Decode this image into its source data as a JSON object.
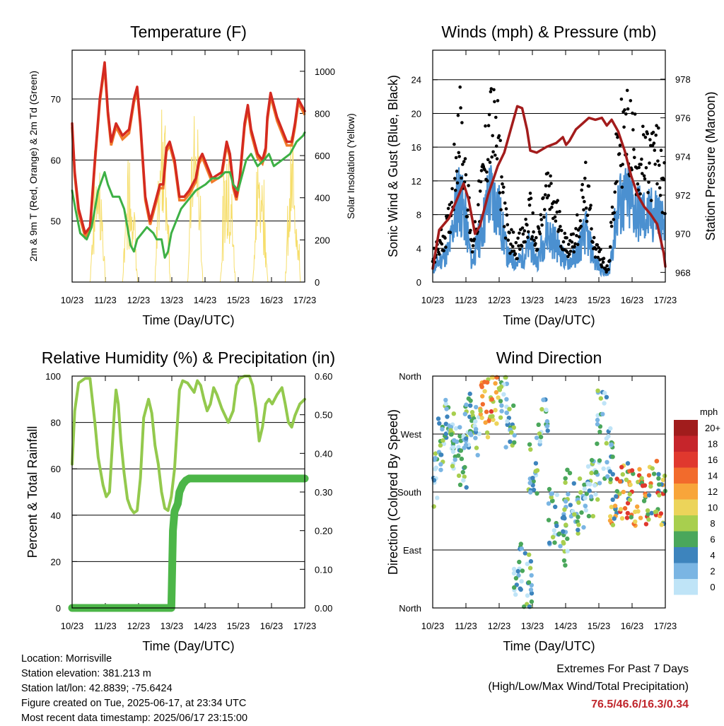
{
  "x_ticks": [
    "10/23",
    "11/23",
    "12/23",
    "13/23",
    "14/23",
    "15/23",
    "16/23",
    "17/23"
  ],
  "x_axis_label": "Time (Day/UTC)",
  "chart_data": [
    {
      "type": "line",
      "title": "Temperature (F)",
      "ylabel": "2m & 9m T (Red, Orange) & 2m Td (Green)",
      "y2label": "Solar Insolation (Yellow)",
      "xlabel": "Time (Day/UTC)",
      "x_ticks": [
        "10/23",
        "11/23",
        "12/23",
        "13/23",
        "14/23",
        "15/23",
        "16/23",
        "17/23"
      ],
      "ylim": [
        40,
        78
      ],
      "yticks": [
        50,
        60,
        70
      ],
      "y2lim": [
        0,
        1100
      ],
      "y2ticks": [
        0,
        200,
        400,
        600,
        800,
        1000
      ],
      "grid": true,
      "series": [
        {
          "axis": "left",
          "color": "#d42a20",
          "width": 3.5,
          "points": [
            [
              0,
              66
            ],
            [
              0.08,
              58
            ],
            [
              0.2,
              52
            ],
            [
              0.4,
              48
            ],
            [
              0.55,
              49
            ],
            [
              0.7,
              60
            ],
            [
              0.85,
              70
            ],
            [
              1.0,
              76
            ],
            [
              1.1,
              68
            ],
            [
              1.2,
              63
            ],
            [
              1.35,
              66
            ],
            [
              1.55,
              64
            ],
            [
              1.75,
              65
            ],
            [
              1.9,
              70
            ],
            [
              2.0,
              72
            ],
            [
              2.1,
              66
            ],
            [
              2.25,
              54
            ],
            [
              2.4,
              50
            ],
            [
              2.55,
              53
            ],
            [
              2.7,
              56
            ],
            [
              2.8,
              56
            ],
            [
              2.9,
              62
            ],
            [
              3.0,
              63
            ],
            [
              3.15,
              60
            ],
            [
              3.3,
              54
            ],
            [
              3.45,
              54
            ],
            [
              3.6,
              55
            ],
            [
              3.8,
              57
            ],
            [
              3.9,
              60
            ],
            [
              4.0,
              61
            ],
            [
              4.15,
              59
            ],
            [
              4.3,
              57
            ],
            [
              4.6,
              58
            ],
            [
              4.75,
              63
            ],
            [
              4.85,
              61
            ],
            [
              4.95,
              56
            ],
            [
              5.05,
              54
            ],
            [
              5.15,
              57
            ],
            [
              5.3,
              66
            ],
            [
              5.4,
              69
            ],
            [
              5.5,
              65
            ],
            [
              5.7,
              61
            ],
            [
              5.85,
              60
            ],
            [
              5.95,
              62
            ],
            [
              6.0,
              67
            ],
            [
              6.1,
              71
            ],
            [
              6.3,
              67
            ],
            [
              6.6,
              63
            ],
            [
              6.75,
              63
            ],
            [
              6.85,
              66
            ],
            [
              6.95,
              70
            ],
            [
              7.05,
              69
            ],
            [
              7.15,
              68
            ]
          ]
        },
        {
          "axis": "left",
          "color": "#3db045",
          "width": 3,
          "points": [
            [
              0,
              55
            ],
            [
              0.1,
              52
            ],
            [
              0.25,
              48
            ],
            [
              0.45,
              47
            ],
            [
              0.6,
              49
            ],
            [
              0.8,
              55
            ],
            [
              1.0,
              58
            ],
            [
              1.1,
              56
            ],
            [
              1.25,
              54
            ],
            [
              1.45,
              54
            ],
            [
              1.6,
              52
            ],
            [
              1.7,
              49
            ],
            [
              1.8,
              46
            ],
            [
              1.9,
              45
            ],
            [
              2.0,
              47
            ],
            [
              2.15,
              48
            ],
            [
              2.3,
              49
            ],
            [
              2.5,
              48
            ],
            [
              2.6,
              47
            ],
            [
              2.75,
              47
            ],
            [
              2.85,
              44
            ],
            [
              2.95,
              45
            ],
            [
              3.05,
              48
            ],
            [
              3.2,
              50
            ],
            [
              3.35,
              52
            ],
            [
              3.5,
              53
            ],
            [
              3.8,
              55
            ],
            [
              4.1,
              56
            ],
            [
              4.3,
              57
            ],
            [
              4.5,
              57
            ],
            [
              4.7,
              58
            ],
            [
              4.85,
              58
            ],
            [
              4.95,
              56
            ],
            [
              5.1,
              55
            ],
            [
              5.2,
              57
            ],
            [
              5.35,
              60
            ],
            [
              5.5,
              61
            ],
            [
              5.7,
              59
            ],
            [
              5.9,
              60
            ],
            [
              6.05,
              61
            ],
            [
              6.2,
              59
            ],
            [
              6.45,
              60
            ],
            [
              6.7,
              61
            ],
            [
              6.9,
              63
            ],
            [
              7.1,
              64
            ],
            [
              7.15,
              64.5
            ]
          ]
        }
      ]
    },
    {
      "type": "line",
      "title": "Winds (mph) & Pressure (mb)",
      "ylabel": "Sonic Wind & Gust (Blue, Black)",
      "y2label": "Station Pressure (Maroon)",
      "xlabel": "Time (Day/UTC)",
      "x_ticks": [
        "10/23",
        "11/23",
        "12/23",
        "13/23",
        "14/23",
        "15/23",
        "16/23",
        "17/23"
      ],
      "ylim": [
        0,
        27.5
      ],
      "yticks": [
        0,
        4,
        8,
        12,
        16,
        20,
        24
      ],
      "y2lim": [
        967.5,
        979.5
      ],
      "y2ticks": [
        968,
        970,
        972,
        974,
        976,
        978
      ],
      "grid": true,
      "series": [
        {
          "axis": "right",
          "color": "#a31c1c",
          "width": 3.5,
          "points": [
            [
              0,
              968.2
            ],
            [
              0.2,
              970.2
            ],
            [
              0.5,
              970.8
            ],
            [
              0.8,
              972.0
            ],
            [
              0.95,
              972.6
            ],
            [
              1.1,
              971.8
            ],
            [
              1.3,
              970.0
            ],
            [
              1.45,
              970.4
            ],
            [
              1.7,
              972.0
            ],
            [
              2.0,
              973.5
            ],
            [
              2.2,
              974.2
            ],
            [
              2.45,
              975.7
            ],
            [
              2.6,
              976.6
            ],
            [
              2.75,
              976.5
            ],
            [
              2.9,
              975.4
            ],
            [
              3.0,
              974.3
            ],
            [
              3.2,
              974.2
            ],
            [
              3.5,
              974.5
            ],
            [
              3.8,
              974.7
            ],
            [
              4.0,
              975.0
            ],
            [
              4.1,
              974.6
            ],
            [
              4.2,
              974.8
            ],
            [
              4.4,
              975.4
            ],
            [
              4.6,
              975.7
            ],
            [
              4.8,
              976.0
            ],
            [
              5.0,
              975.9
            ],
            [
              5.2,
              976.0
            ],
            [
              5.35,
              975.6
            ],
            [
              5.5,
              975.9
            ],
            [
              5.7,
              975.3
            ],
            [
              5.9,
              974.3
            ],
            [
              6.1,
              973.0
            ],
            [
              6.3,
              972.0
            ],
            [
              6.5,
              971.4
            ],
            [
              6.7,
              971.0
            ],
            [
              6.9,
              970.5
            ],
            [
              7.1,
              969.0
            ],
            [
              7.15,
              968.3
            ]
          ]
        }
      ]
    },
    {
      "type": "line",
      "title": "Relative Humidity (%) & Precipitation (in)",
      "ylabel": "Percent & Total Rainfall",
      "xlabel": "Time (Day/UTC)",
      "x_ticks": [
        "10/23",
        "11/23",
        "12/23",
        "13/23",
        "14/23",
        "15/23",
        "16/23",
        "17/23"
      ],
      "ylim": [
        0,
        100
      ],
      "yticks": [
        0,
        20,
        40,
        60,
        80,
        100
      ],
      "y2lim": [
        0,
        0.6
      ],
      "y2ticks": [
        "0.00",
        "0.10",
        "0.20",
        "0.30",
        "0.40",
        "0.50",
        "0.60"
      ],
      "grid": true,
      "series": [
        {
          "axis": "left",
          "color": "#93c94d",
          "width": 4,
          "points": [
            [
              0,
              62
            ],
            [
              0.08,
              85
            ],
            [
              0.2,
              97
            ],
            [
              0.4,
              99
            ],
            [
              0.55,
              99
            ],
            [
              0.7,
              80
            ],
            [
              0.8,
              65
            ],
            [
              0.95,
              53
            ],
            [
              1.05,
              48
            ],
            [
              1.15,
              50
            ],
            [
              1.3,
              85
            ],
            [
              1.35,
              94
            ],
            [
              1.42,
              88
            ],
            [
              1.5,
              72
            ],
            [
              1.6,
              58
            ],
            [
              1.7,
              47
            ],
            [
              1.8,
              43
            ],
            [
              1.9,
              41
            ],
            [
              2.0,
              42
            ],
            [
              2.1,
              56
            ],
            [
              2.2,
              82
            ],
            [
              2.35,
              90
            ],
            [
              2.45,
              84
            ],
            [
              2.55,
              70
            ],
            [
              2.65,
              62
            ],
            [
              2.75,
              50
            ],
            [
              2.85,
              43
            ],
            [
              2.95,
              42
            ],
            [
              3.05,
              48
            ],
            [
              3.15,
              60
            ],
            [
              3.3,
              94
            ],
            [
              3.4,
              98
            ],
            [
              3.55,
              97
            ],
            [
              3.75,
              93
            ],
            [
              3.85,
              98
            ],
            [
              3.95,
              96
            ],
            [
              4.05,
              90
            ],
            [
              4.15,
              85
            ],
            [
              4.25,
              88
            ],
            [
              4.35,
              95
            ],
            [
              4.45,
              92
            ],
            [
              4.6,
              86
            ],
            [
              4.8,
              80
            ],
            [
              4.95,
              85
            ],
            [
              5.05,
              96
            ],
            [
              5.15,
              99
            ],
            [
              5.3,
              100
            ],
            [
              5.45,
              100
            ],
            [
              5.55,
              96
            ],
            [
              5.65,
              86
            ],
            [
              5.75,
              72
            ],
            [
              5.85,
              78
            ],
            [
              5.95,
              88
            ],
            [
              6.05,
              90
            ],
            [
              6.15,
              88
            ],
            [
              6.3,
              92
            ],
            [
              6.45,
              95
            ],
            [
              6.55,
              88
            ],
            [
              6.65,
              80
            ],
            [
              6.75,
              78
            ],
            [
              6.85,
              83
            ],
            [
              7.0,
              88
            ],
            [
              7.15,
              90
            ]
          ]
        },
        {
          "axis": "right",
          "color": "#4cb648",
          "width": 11,
          "points": [
            [
              0,
              0
            ],
            [
              3.05,
              0
            ],
            [
              3.06,
              0.04
            ],
            [
              3.08,
              0.12
            ],
            [
              3.1,
              0.2
            ],
            [
              3.15,
              0.25
            ],
            [
              3.25,
              0.27
            ],
            [
              3.3,
              0.3
            ],
            [
              3.4,
              0.32
            ],
            [
              3.5,
              0.33
            ],
            [
              3.6,
              0.335
            ],
            [
              7.15,
              0.335
            ]
          ]
        }
      ]
    },
    {
      "type": "scatter",
      "title": "Wind Direction",
      "ylabel": "Direction (Colored By Speed)",
      "xlabel": "Time (Day/UTC)",
      "x_ticks": [
        "10/23",
        "11/23",
        "12/23",
        "13/23",
        "14/23",
        "15/23",
        "16/23",
        "17/23"
      ],
      "ylim": [
        0,
        360
      ],
      "yticks": [
        "North",
        "East",
        "South",
        "West",
        "North"
      ],
      "grid": true,
      "colorbar": {
        "title": "mph",
        "labels": [
          "20+",
          "18",
          "16",
          "14",
          "12",
          "10",
          "8",
          "6",
          "4",
          "2",
          "0"
        ],
        "colors": [
          "#a11c1c",
          "#c6252b",
          "#e0382e",
          "#f26b2c",
          "#f8a53a",
          "#ecd45a",
          "#a8cf4e",
          "#4aa75b",
          "#3d84bd",
          "#7ab5e3",
          "#bfe4f7"
        ]
      }
    }
  ],
  "info": {
    "location": "Location: Morrisville",
    "elevation": "Station elevation: 381.213 m",
    "latlon": "Station lat/lon: 42.8839; -75.6424",
    "created": "Figure created on Tue, 2025-06-17, at 23:34 UTC",
    "timestamp": "Most recent data timestamp: 2025/06/17 23:15:00"
  },
  "extremes": {
    "title": "Extremes For Past 7 Days",
    "subtitle": "(High/Low/Max Wind/Total Precipitation)",
    "values": "76.5/46.6/16.3/0.34"
  }
}
